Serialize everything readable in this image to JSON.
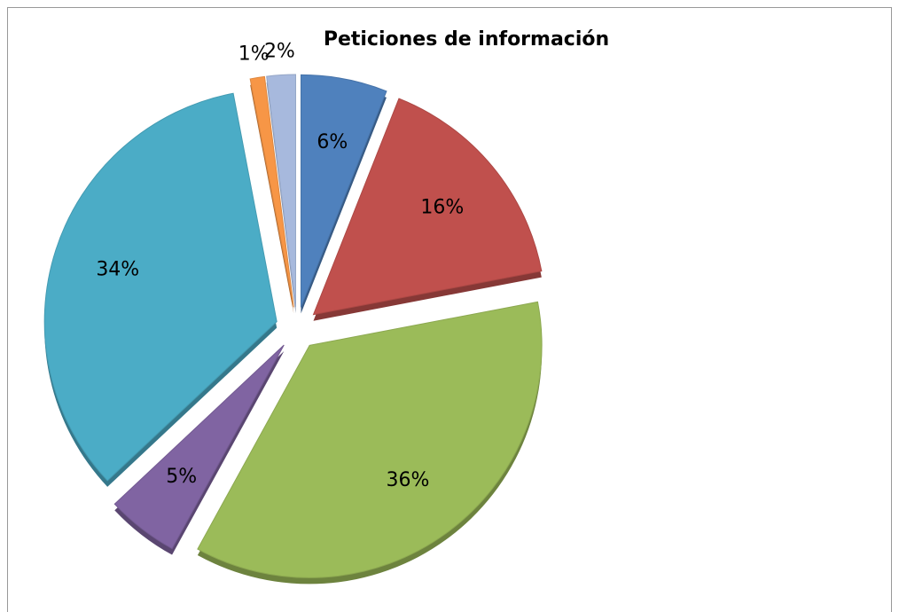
{
  "chart_data": {
    "type": "pie",
    "title": "Peticiones de información",
    "values": [
      6,
      16,
      36,
      5,
      34,
      1,
      2
    ],
    "value_labels": [
      "6%",
      "16%",
      "36%",
      "5%",
      "34%",
      "1%",
      "2%"
    ],
    "colors": [
      "#4f81bd",
      "#c0504d",
      "#9bbb59",
      "#8064a2",
      "#4bacc6",
      "#f79646",
      "#a7b9dd"
    ]
  }
}
